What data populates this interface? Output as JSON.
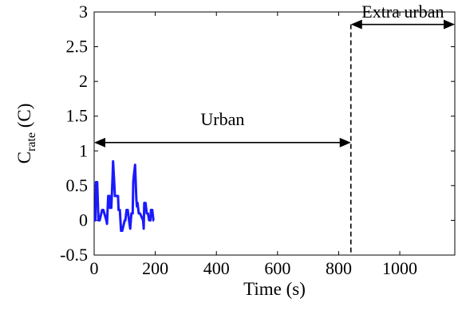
{
  "chart_data": {
    "type": "line",
    "xlabel": "Time (s)",
    "ylabel_main": "C",
    "ylabel_sub": "rate",
    "ylabel_unit": "(C)",
    "xlim": [
      0,
      1180
    ],
    "ylim": [
      -0.5,
      3
    ],
    "xticks": [
      0,
      200,
      400,
      600,
      800,
      1000
    ],
    "xtick_labels": [
      "0",
      "200",
      "400",
      "600",
      "800",
      "1000"
    ],
    "yticks": [
      -0.5,
      0,
      0.5,
      1,
      1.5,
      2,
      2.5,
      3
    ],
    "ytick_labels": [
      "-0.5",
      "0",
      "0.5",
      "1",
      "1.5",
      "2",
      "2.5",
      "3"
    ],
    "grid": false,
    "series_color": "#1a1aff",
    "divider_x": 840,
    "annotations": [
      {
        "text": "Urban",
        "x_start": 0,
        "x_end": 840,
        "arrow_y": 1.12,
        "label_y": 1.45
      },
      {
        "text": "Extra urban",
        "x_start": 840,
        "x_end": 1180,
        "arrow_y": 2.82,
        "label_y": 3.0
      }
    ],
    "series": [
      {
        "x": [
          0,
          4,
          6,
          10,
          14,
          18,
          26,
          30,
          40,
          42,
          46,
          50,
          52,
          56,
          60,
          62,
          65,
          68,
          78,
          80,
          84,
          88,
          92,
          100,
          102,
          106,
          110,
          114,
          118,
          120,
          122,
          126,
          128,
          130,
          134,
          138,
          140,
          142,
          146,
          150,
          160,
          162,
          164,
          168,
          172,
          176,
          180,
          184,
          186,
          190,
          194,
          196
        ],
        "y": [
          0,
          0,
          0.55,
          0.55,
          0,
          0,
          0.15,
          0.15,
          0,
          -0.05,
          0.35,
          0.35,
          0.18,
          0.18,
          0.6,
          0.85,
          0.6,
          0.35,
          0.35,
          0.15,
          0.15,
          -0.15,
          -0.15,
          0,
          0,
          0.15,
          0.15,
          0,
          -0.12,
          0,
          0.1,
          0.1,
          0.55,
          0.65,
          0.8,
          0.3,
          0.2,
          0.25,
          0.1,
          0.1,
          0,
          -0.12,
          0.25,
          0.25,
          0.1,
          0.1,
          0,
          0,
          0.15,
          0.15,
          0,
          0
        ]
      }
    ]
  }
}
